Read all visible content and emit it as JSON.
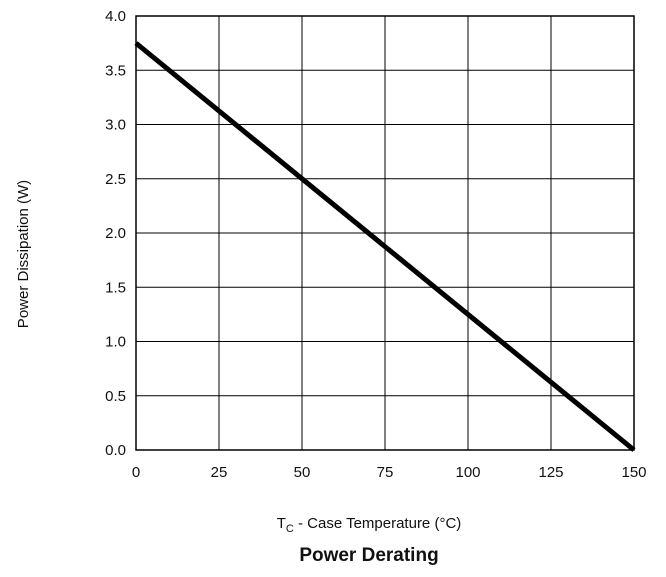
{
  "chart_data": {
    "type": "line",
    "title": "Power Derating",
    "xlabel": {
      "main": "T",
      "sub": "C",
      "rest": " - Case Temperature (°C)"
    },
    "ylabel": "Power Dissipation (W)",
    "xlim": [
      0,
      150
    ],
    "ylim": [
      0,
      4.0
    ],
    "xticks": [
      "0",
      "25",
      "50",
      "75",
      "100",
      "125",
      "150"
    ],
    "yticks": [
      "0.0",
      "0.5",
      "1.0",
      "1.5",
      "2.0",
      "2.5",
      "3.0",
      "3.5",
      "4.0"
    ],
    "grid": true,
    "series": [
      {
        "x": [
          0,
          150
        ],
        "y": [
          3.75,
          0.0
        ]
      }
    ],
    "colors": {
      "line": "#000000",
      "grid": "#000000",
      "text": "#111111"
    }
  }
}
